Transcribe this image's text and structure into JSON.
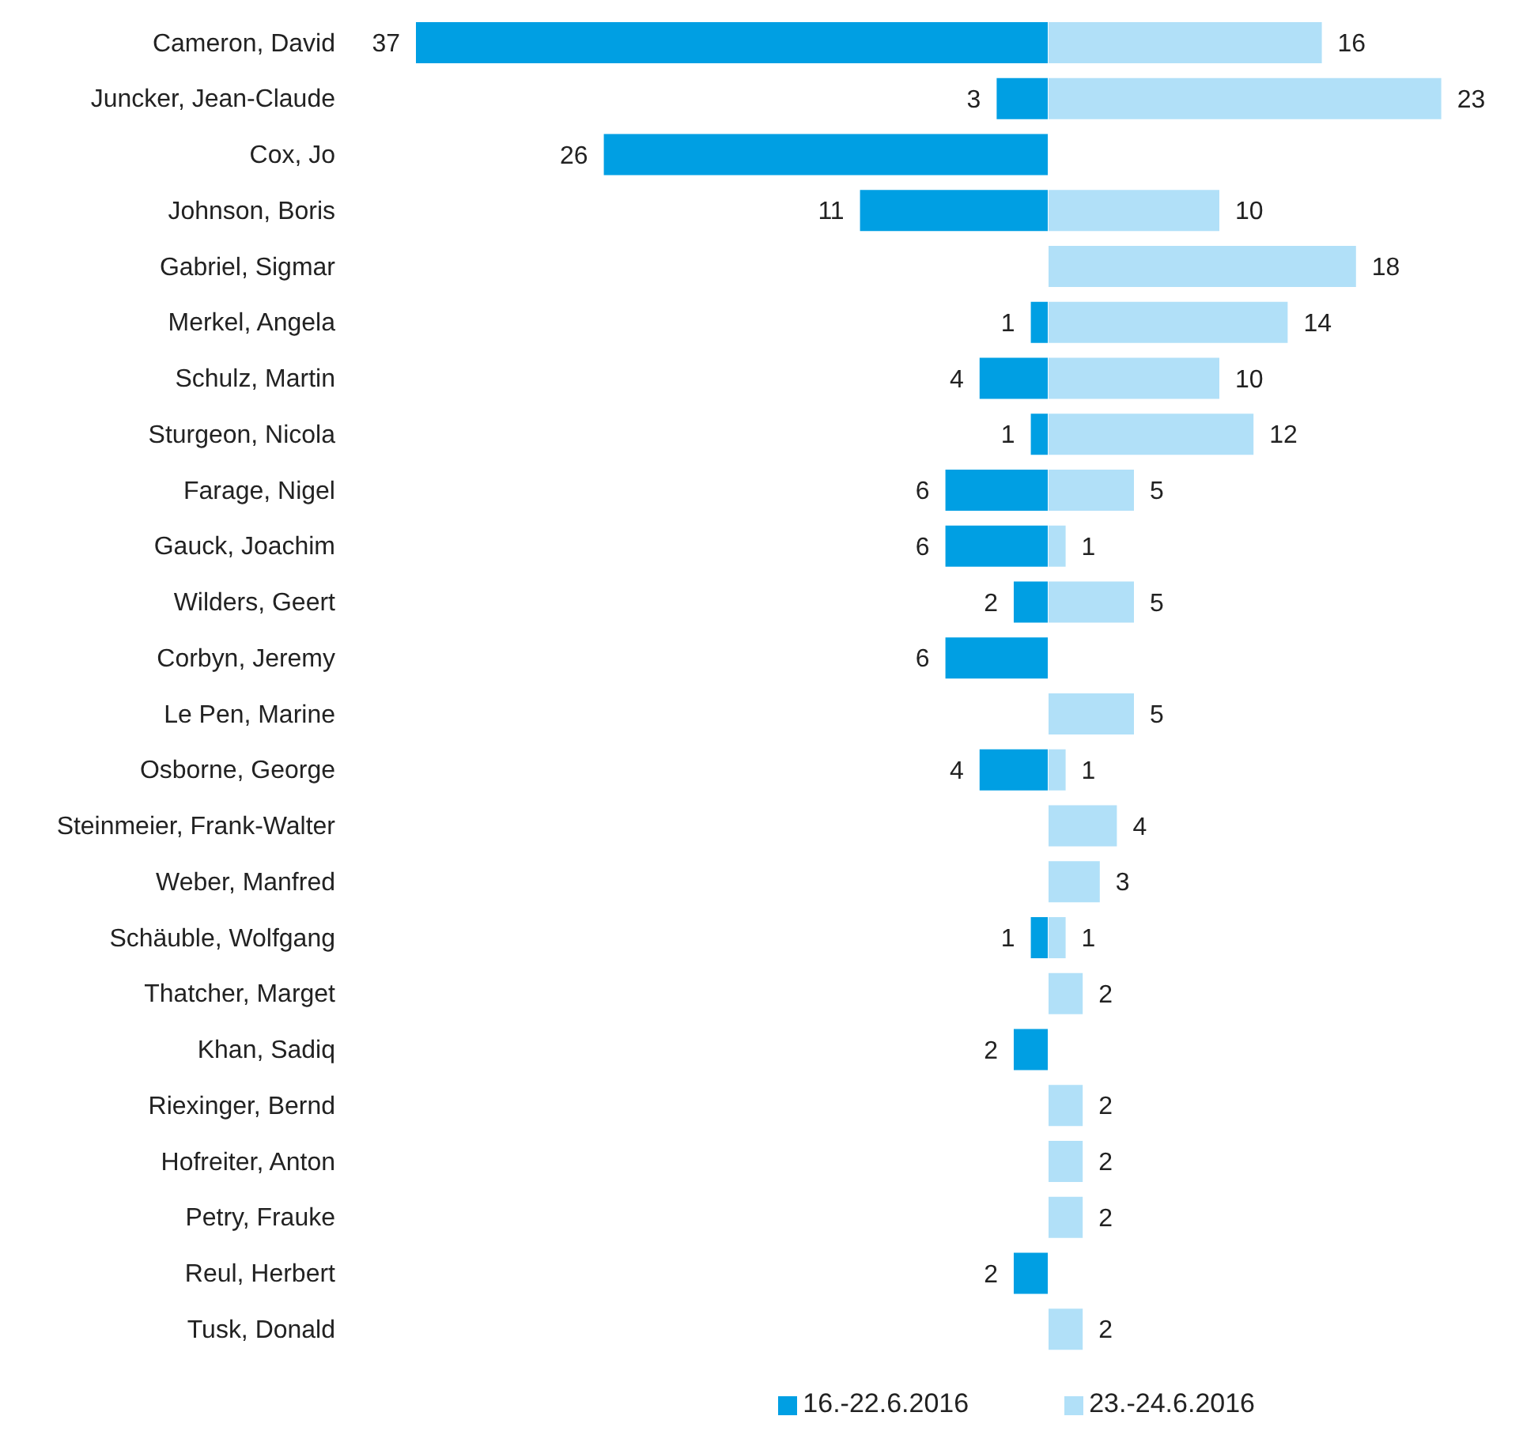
{
  "chart_data": [
    {
      "type": "bar",
      "orientation": "horizontal",
      "categories": [
        "Cameron, David",
        "Juncker, Jean-Claude",
        "Cox, Jo",
        "Johnson, Boris",
        "Gabriel, Sigmar",
        "Merkel, Angela",
        "Schulz, Martin",
        "Sturgeon, Nicola",
        "Farage, Nigel",
        "Gauck, Joachim",
        "Wilders, Geert",
        "Corbyn, Jeremy",
        "Le Pen, Marine",
        "Osborne, George",
        "Steinmeier, Frank-Walter",
        "Weber, Manfred",
        "Schäuble, Wolfgang",
        "Thatcher, Marget",
        "Khan, Sadiq",
        "Riexinger, Bernd",
        "Hofreiter, Anton",
        "Petry, Frauke",
        "Reul, Herbert",
        "Tusk, Donald"
      ],
      "series": [
        {
          "name": "16.-22.6.2016",
          "color": "#009fe3",
          "values": [
            37,
            3,
            26,
            11,
            null,
            1,
            4,
            1,
            6,
            6,
            2,
            6,
            null,
            4,
            null,
            null,
            1,
            null,
            2,
            null,
            null,
            null,
            2,
            null
          ]
        }
      ],
      "xlim": [
        37,
        0
      ],
      "data_labels": true,
      "tick_labels": "y",
      "legend": "bottom right"
    },
    {
      "type": "bar",
      "orientation": "horizontal",
      "categories": [
        null,
        null,
        null,
        null,
        null,
        null,
        null,
        null,
        null,
        null,
        null,
        null,
        null,
        null,
        null,
        null,
        null,
        null,
        null,
        null,
        null,
        null,
        null,
        null
      ],
      "series": [
        {
          "name": "23.-24.6.2016",
          "color": "#b1e0f8",
          "values": [
            16,
            23,
            null,
            10,
            18,
            14,
            10,
            12,
            5,
            1,
            5,
            null,
            5,
            1,
            4,
            3,
            1,
            2,
            null,
            2,
            2,
            2,
            null,
            2
          ]
        }
      ],
      "xlim": [
        0,
        23
      ],
      "data_labels": true,
      "tick_labels": false,
      "legend": "bottom left"
    }
  ]
}
